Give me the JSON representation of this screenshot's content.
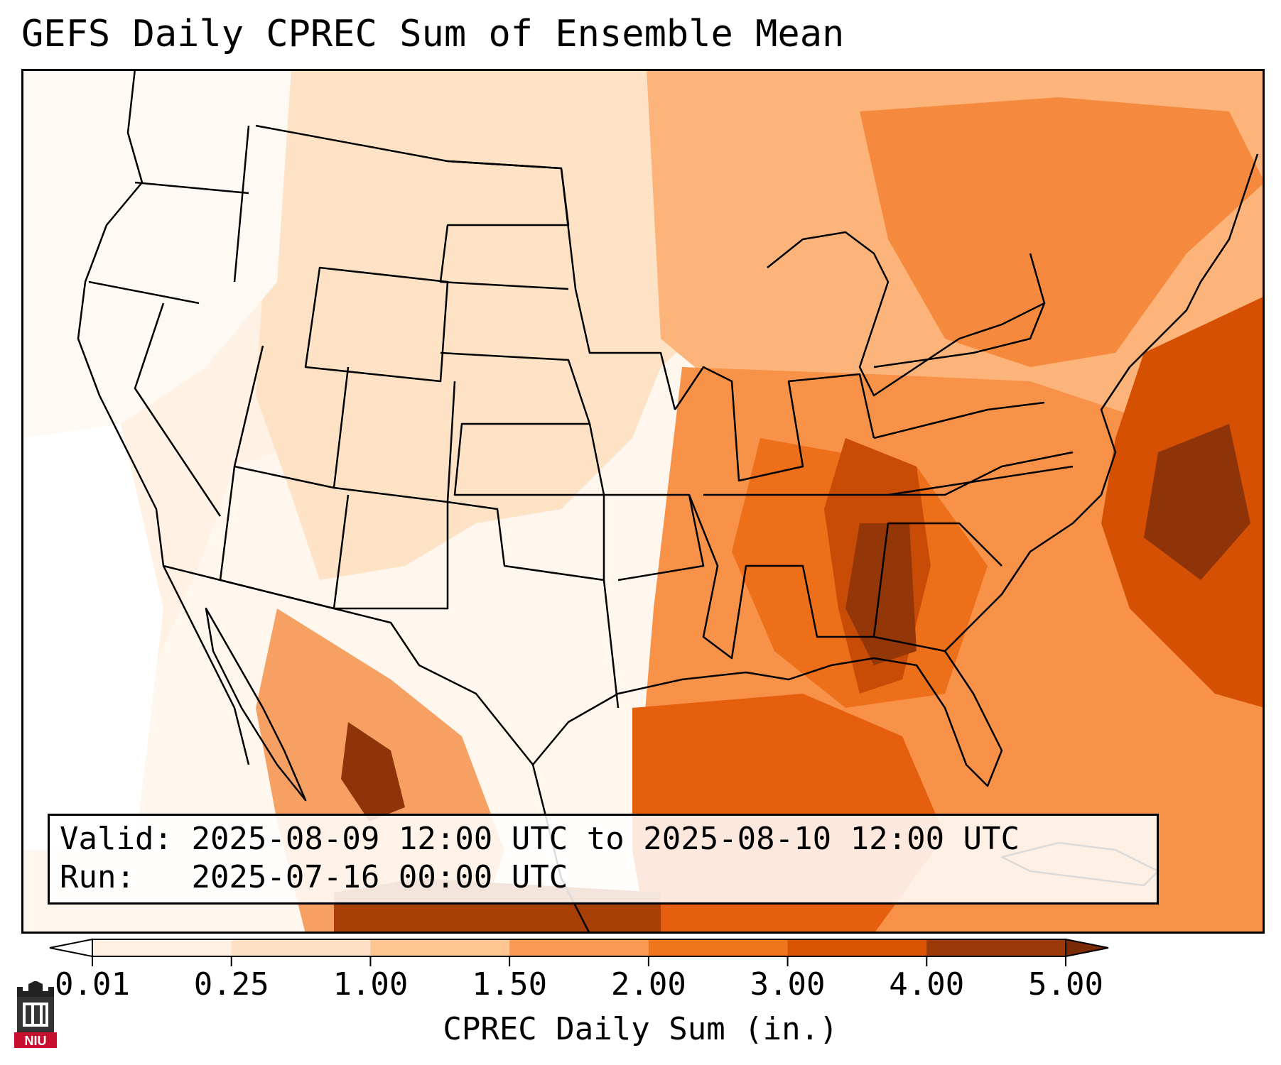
{
  "title": "GEFS Daily CPREC Sum of Ensemble Mean",
  "valid_label": "Valid:",
  "valid_value": "2025-08-09 12:00 UTC to 2025-08-10 12:00 UTC",
  "run_label": "Run:",
  "run_value": "2025-07-16 00:00 UTC",
  "colorbar": {
    "label": "CPREC Daily Sum (in.)",
    "ticks": [
      "0.01",
      "0.25",
      "1.00",
      "1.50",
      "2.00",
      "3.00",
      "4.00",
      "5.00"
    ],
    "colors": [
      "#fff0e2",
      "#fee0c4",
      "#fdc592",
      "#fb9a55",
      "#f0761e",
      "#d95400",
      "#9b3a08"
    ],
    "under_color": "#ffffff",
    "over_color": "#7a2a04",
    "extend": "both"
  },
  "logo": {
    "text": "NIU",
    "icon": "niu-castle-logo"
  },
  "colors": {
    "frame": "#000000",
    "state_lines": "#000000"
  }
}
